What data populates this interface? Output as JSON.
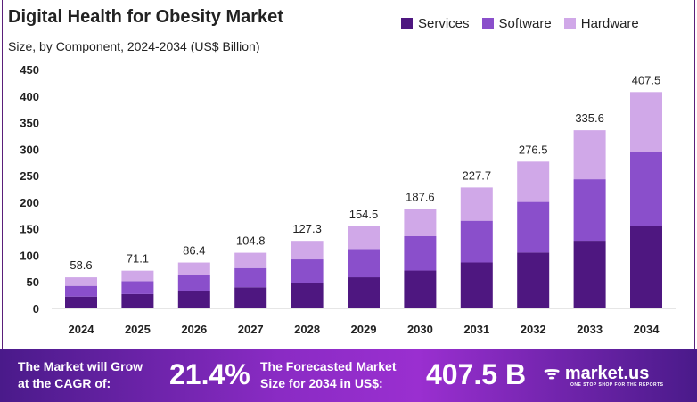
{
  "chart_data": {
    "type": "bar",
    "stacked": true,
    "title": "Digital Health for Obesity Market",
    "subtitle": "Size, by Component, 2024-2034 (US$ Billion)",
    "categories": [
      "2024",
      "2025",
      "2026",
      "2027",
      "2028",
      "2029",
      "2030",
      "2031",
      "2032",
      "2033",
      "2034"
    ],
    "totals": [
      "58.6",
      "71.1",
      "86.4",
      "104.8",
      "127.3",
      "154.5",
      "187.6",
      "227.7",
      "276.5",
      "335.6",
      "407.5"
    ],
    "series": [
      {
        "name": "Services",
        "color": "#4e1780",
        "values": [
          22.3,
          27.0,
          32.8,
          39.8,
          48.4,
          58.7,
          71.3,
          86.5,
          105.1,
          127.5,
          155.0
        ]
      },
      {
        "name": "Software",
        "color": "#8a4fcb",
        "values": [
          20.2,
          24.5,
          29.8,
          36.2,
          43.9,
          53.3,
          64.7,
          78.6,
          95.4,
          115.8,
          140.0
        ]
      },
      {
        "name": "Hardware",
        "color": "#d0a8e8",
        "values": [
          16.1,
          19.6,
          23.8,
          28.8,
          35.0,
          42.5,
          51.6,
          62.6,
          76.0,
          92.3,
          112.5
        ]
      }
    ],
    "yticks": [
      "0",
      "50",
      "100",
      "150",
      "200",
      "250",
      "300",
      "350",
      "400",
      "450"
    ],
    "ylim": [
      0,
      450
    ],
    "grid": false,
    "legend": "top-right"
  },
  "footer": {
    "cagr_label_1": "The Market will Grow",
    "cagr_label_2": "at the CAGR of:",
    "cagr": "21.4%",
    "size_label_1": "The Forecasted Market",
    "size_label_2": "Size for 2034 in US$:",
    "size": "407.5 B",
    "brand": "market.us",
    "tagline": "ONE STOP SHOP FOR THE REPORTS"
  }
}
